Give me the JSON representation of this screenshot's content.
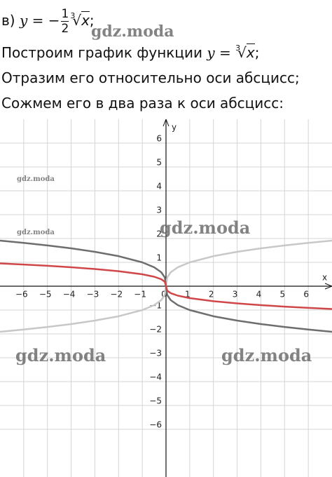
{
  "text": {
    "line1": {
      "label": "в) ",
      "lhs": "y = −",
      "frac_num": "1",
      "frac_den": "2",
      "root_index": "3",
      "radicand": "x",
      "end": ";"
    },
    "line2": {
      "text": "Построим график функции ",
      "lhs": "y = ",
      "root_index": "3",
      "radicand": "x",
      "end": ";"
    },
    "line3": "Отразим его относительно оси абсцисс;",
    "line4": "Сожмем его в два раза к оси абсцисс:",
    "watermark": "gdz.moda"
  },
  "chart_data": {
    "type": "line",
    "x_label": "x",
    "y_label": "y",
    "x": [
      -7,
      -6,
      -5,
      -4,
      -3,
      -2,
      -1,
      -0.5,
      -0.2,
      -0.05,
      0,
      0.05,
      0.2,
      0.5,
      1,
      2,
      3,
      4,
      5,
      6,
      7
    ],
    "series": [
      {
        "color": "#c8c8c8",
        "values": [
          -1.913,
          -1.817,
          -1.71,
          -1.587,
          -1.442,
          -1.26,
          -1,
          -0.794,
          -0.585,
          -0.368,
          0,
          0.368,
          0.585,
          0.794,
          1,
          1.26,
          1.442,
          1.587,
          1.71,
          1.817,
          1.913
        ]
      },
      {
        "color": "#6e6e6e",
        "values": [
          1.913,
          1.817,
          1.71,
          1.587,
          1.442,
          1.26,
          1,
          0.794,
          0.585,
          0.368,
          0,
          -0.368,
          -0.585,
          -0.794,
          -1,
          -1.26,
          -1.442,
          -1.587,
          -1.71,
          -1.817,
          -1.913
        ]
      },
      {
        "color": "#d0474a",
        "values": [
          0.956,
          0.909,
          0.855,
          0.794,
          0.721,
          0.63,
          0.5,
          0.397,
          0.292,
          0.184,
          0,
          -0.184,
          -0.292,
          -0.397,
          -0.5,
          -0.63,
          -0.721,
          -0.794,
          -0.855,
          -0.909,
          -0.956
        ]
      }
    ],
    "xlim": [
      -7,
      7
    ],
    "ylim": [
      -8,
      7
    ],
    "xticks": [
      {
        "value": -6,
        "label": "−6"
      },
      {
        "value": -5,
        "label": "−5"
      },
      {
        "value": -4,
        "label": "−4"
      },
      {
        "value": -3,
        "label": "−3"
      },
      {
        "value": -2,
        "label": "−2"
      },
      {
        "value": -1,
        "label": "−1"
      },
      0,
      1,
      2,
      3,
      4,
      5,
      6
    ],
    "yticks": [
      {
        "value": -6,
        "label": "−6"
      },
      {
        "value": -5,
        "label": "−5"
      },
      {
        "value": -4,
        "label": "−4"
      },
      {
        "value": -3,
        "label": "−3"
      },
      {
        "value": -2,
        "label": "−2"
      },
      {
        "value": -1,
        "label": "−1"
      },
      1,
      2,
      3,
      4,
      5,
      6
    ],
    "grid": true
  }
}
